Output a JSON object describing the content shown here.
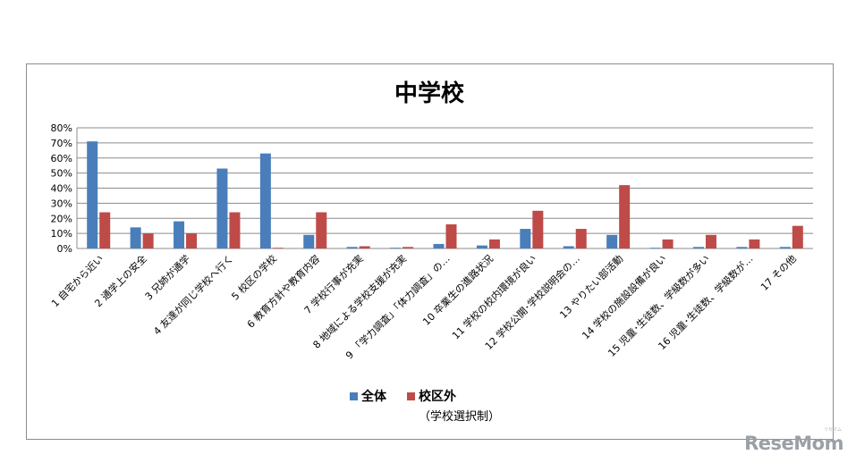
{
  "chart_data": {
    "type": "bar",
    "title": "中学校",
    "xlabel": "",
    "ylabel": "",
    "ylim": [
      0,
      80
    ],
    "y_tick_step": 10,
    "y_tick_format": "percent",
    "grid": true,
    "legend_position": "bottom",
    "categories": [
      "1 自宅から近い",
      "2 通学上の安全",
      "3 兄姉が通学",
      "4 友達が同じ学校へ行く",
      "5 校区の学校",
      "6 教育方針や教育内容",
      "7 学校行事が充実",
      "8 地域による学校支援が充実",
      "9 「学力調査」「体力調査」の…",
      "10 卒業生の進路状況",
      "11 学校の校内環境が良い",
      "12 学校公開･学校説明会の…",
      "13 やりたい部活動",
      "14 学校の施設設備が良い",
      "15 児童･生徒数、学級数が多い",
      "16 児童･生徒数、学級数が…",
      "17 その他"
    ],
    "series": [
      {
        "name": "全体",
        "color": "#4a7ebb",
        "values": [
          71,
          14,
          18,
          53,
          63,
          9,
          1,
          0.5,
          3,
          2,
          13,
          1.5,
          9,
          0.3,
          1,
          1,
          1
        ]
      },
      {
        "name": "校区外",
        "sublabel": "（学校選択制）",
        "color": "#be4b48",
        "values": [
          24,
          10,
          10,
          24,
          0,
          24,
          1.5,
          1,
          16,
          6,
          25,
          13,
          42,
          6,
          9,
          6,
          15
        ]
      }
    ]
  },
  "watermark": {
    "text": "ReseMom",
    "sub": "リセマム"
  }
}
